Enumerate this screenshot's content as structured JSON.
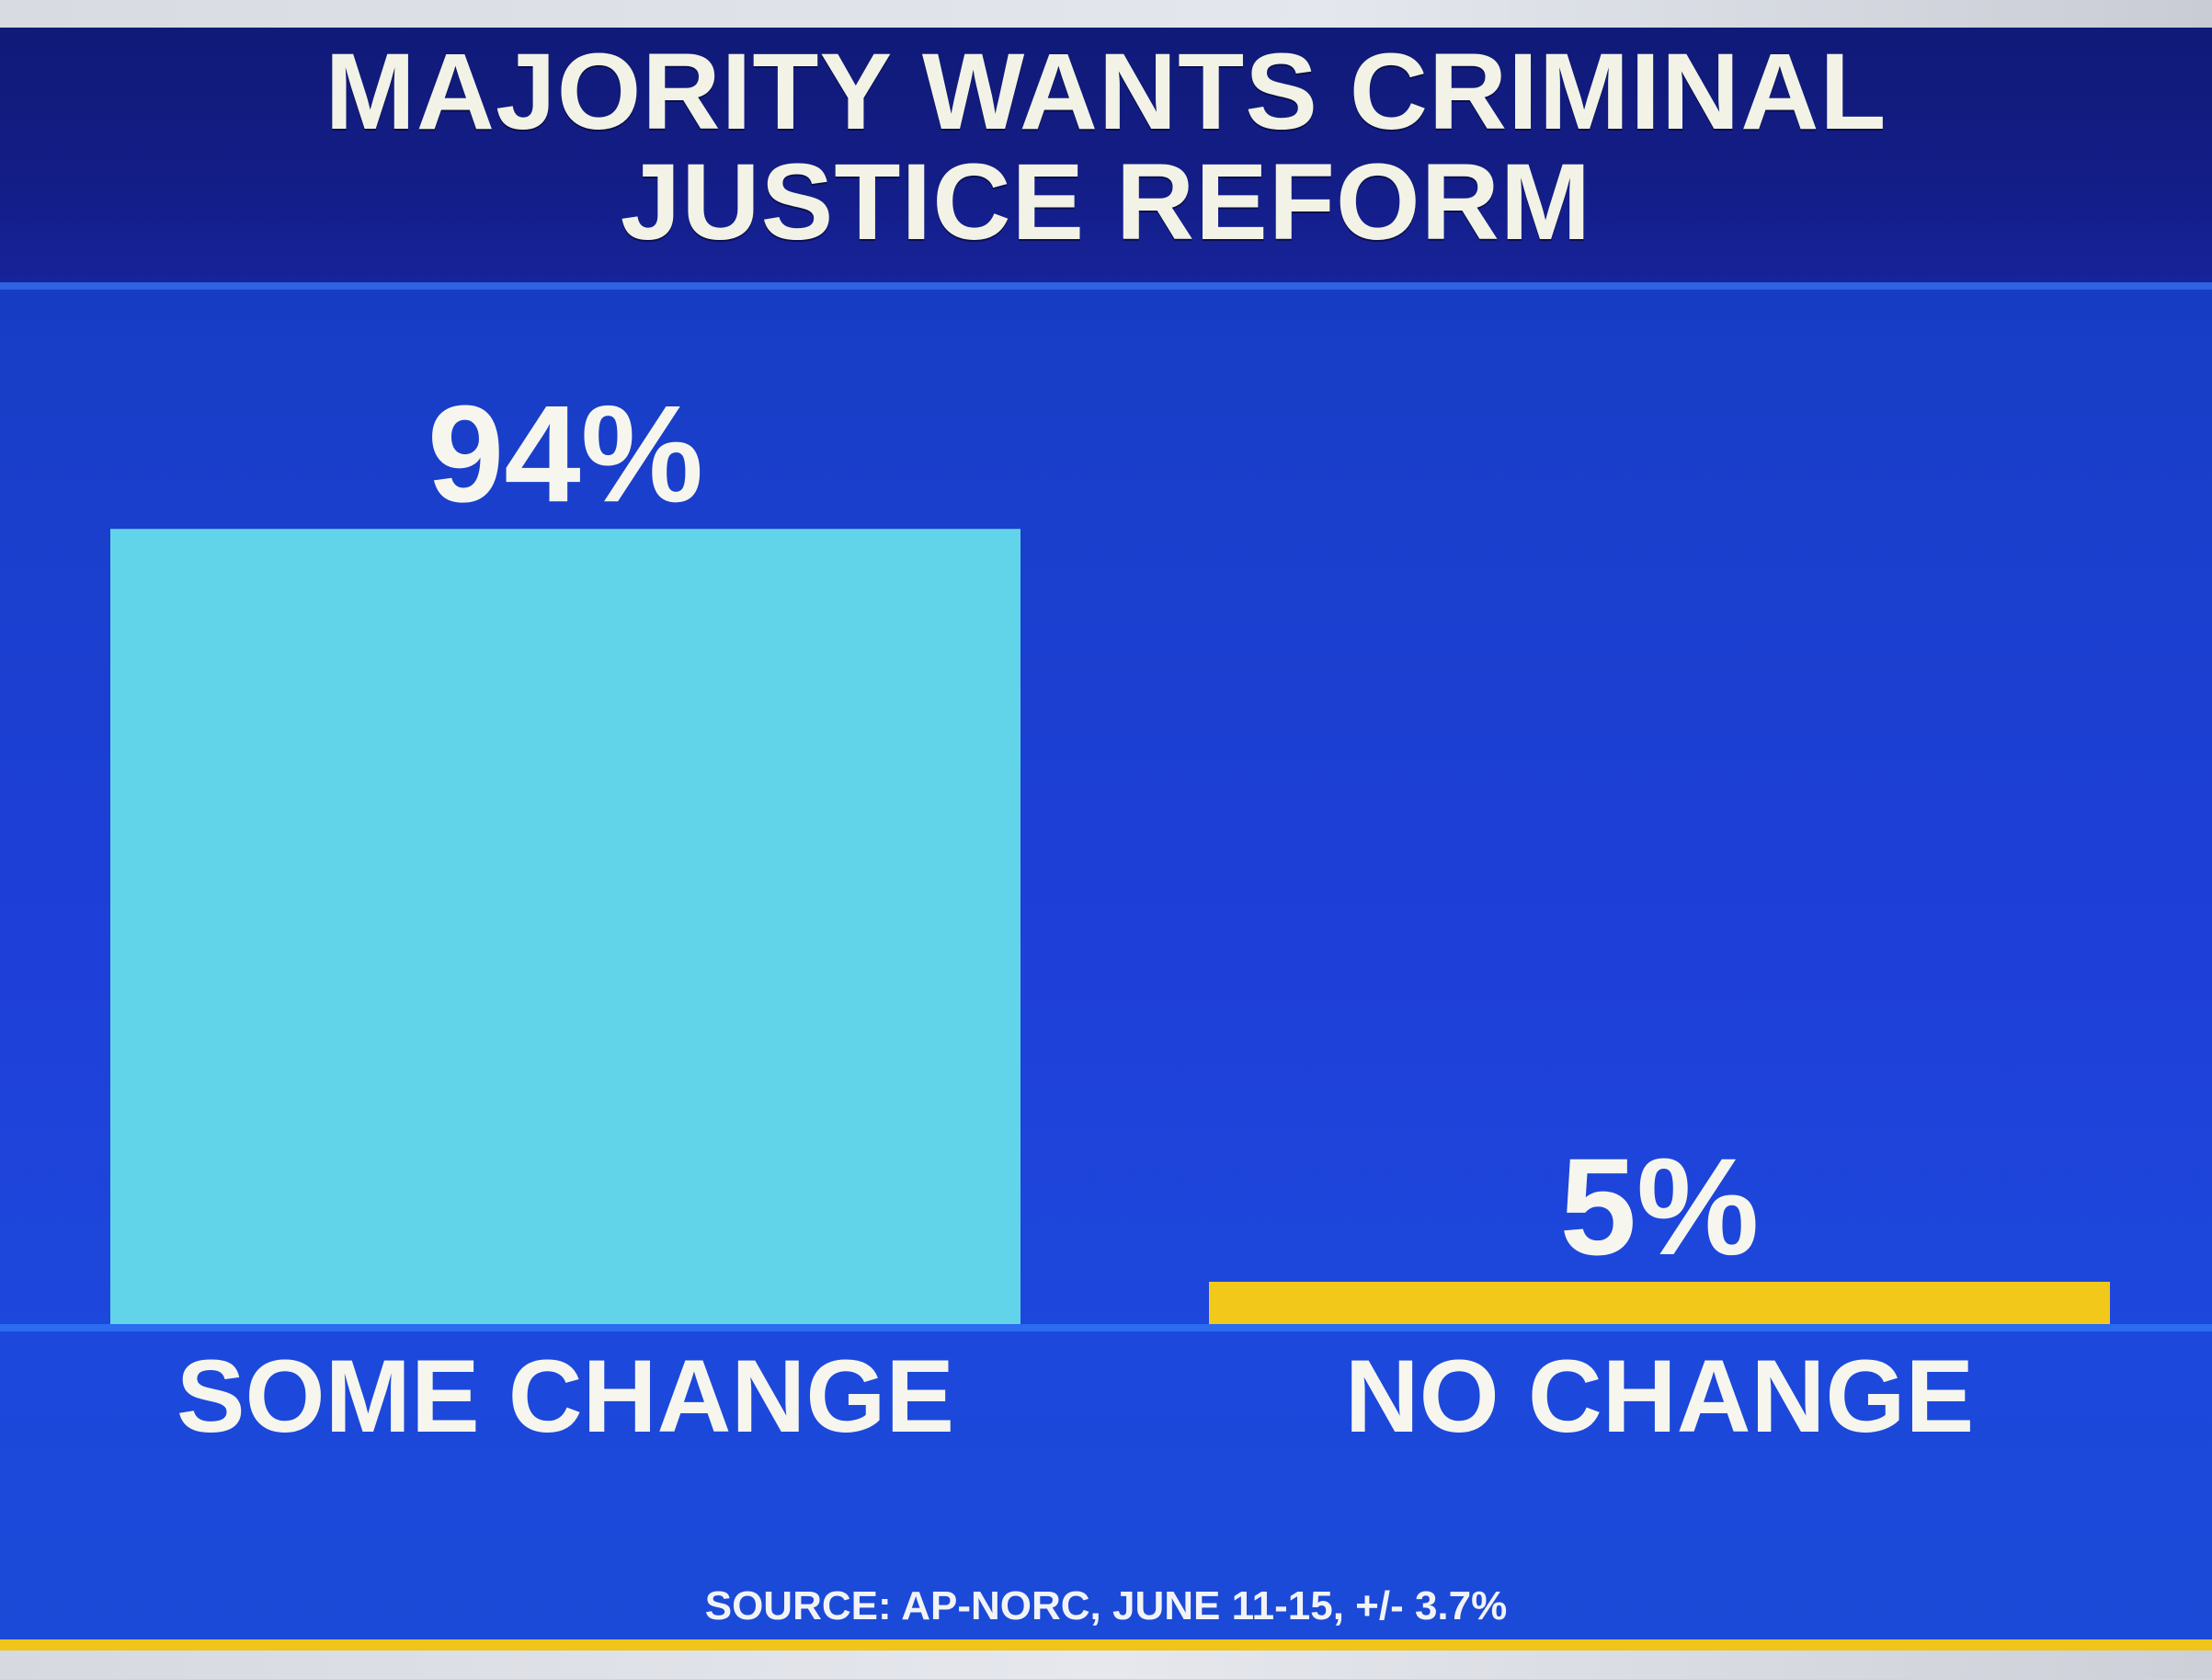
{
  "chart_data": {
    "type": "bar",
    "title": "MAJORITY WANTS CRIMINAL\nJUSTICE REFORM",
    "categories": [
      "SOME CHANGE",
      "NO CHANGE"
    ],
    "values": [
      94,
      5
    ],
    "value_labels": [
      "94%",
      "5%"
    ],
    "bar_colors": [
      "#62d4ea",
      "#f2c81b"
    ],
    "ylim": [
      0,
      100
    ],
    "grid": false,
    "source": "SOURCE: AP-NORC, JUNE 11-15, +/- 3.7%"
  },
  "colors": {
    "background": "#1e3fd8",
    "title_band": "#131d86",
    "text": "#f4f5f0",
    "accent_rule": "#f0c419"
  }
}
